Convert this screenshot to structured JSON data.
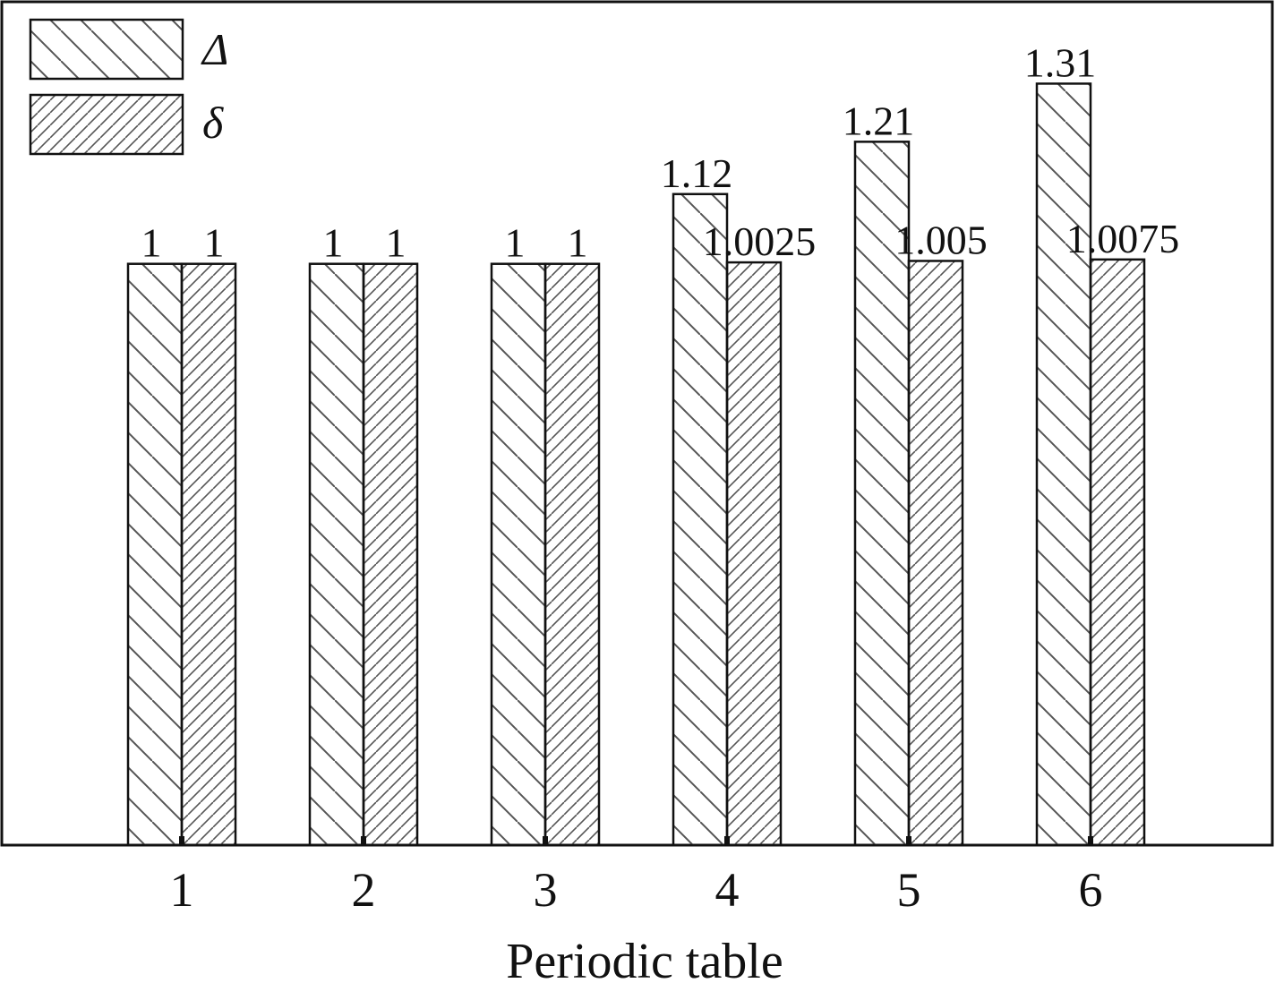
{
  "chart_data": {
    "type": "bar",
    "title": "",
    "xlabel": "Periodic table",
    "ylabel": "",
    "categories": [
      "1",
      "2",
      "3",
      "4",
      "5",
      "6"
    ],
    "series": [
      {
        "name": "Δ",
        "values": [
          1,
          1,
          1,
          1.12,
          1.21,
          1.31
        ],
        "labels": [
          "1",
          "1",
          "1",
          "1.12",
          "1.21",
          "1.31"
        ],
        "pattern": "backslash-hatch"
      },
      {
        "name": "δ",
        "values": [
          1,
          1,
          1,
          1.0025,
          1.005,
          1.0075
        ],
        "labels": [
          "1",
          "1",
          "1",
          "1.0025",
          "1.005",
          "1.0075"
        ],
        "pattern": "slash-hatch"
      }
    ],
    "ylim": [
      0,
      1.42
    ],
    "grid": false,
    "legend": "top-left",
    "colors": {
      "bar_fill": "#ffffff",
      "hatch": "#444444",
      "border": "#111111"
    }
  }
}
